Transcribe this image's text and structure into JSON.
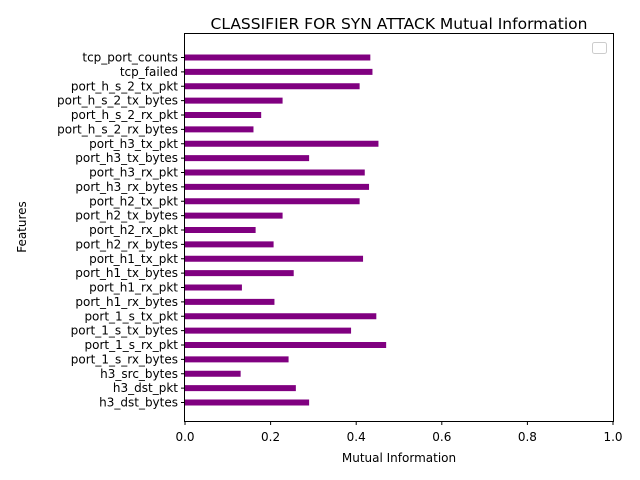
{
  "chart_data": {
    "type": "bar",
    "orientation": "horizontal",
    "title": "CLASSIFIER FOR SYN ATTACK Mutual Information",
    "xlabel": "Mutual Information",
    "ylabel": "Features",
    "xlim": [
      0.0,
      1.0
    ],
    "xticks": [
      "0.0",
      "0.2",
      "0.4",
      "0.6",
      "0.8",
      "1.0"
    ],
    "bar_color": "#800080",
    "legend": {
      "placement": "top-right",
      "entries": []
    },
    "grid": false,
    "categories": [
      "tcp_port_counts",
      "tcp_failed",
      "port_h_s_2_tx_pkt",
      "port_h_s_2_tx_bytes",
      "port_h_s_2_rx_pkt",
      "port_h_s_2_rx_bytes",
      "port_h3_tx_pkt",
      "port_h3_tx_bytes",
      "port_h3_rx_pkt",
      "port_h3_rx_bytes",
      "port_h2_tx_pkt",
      "port_h2_tx_bytes",
      "port_h2_rx_pkt",
      "port_h2_rx_bytes",
      "port_h1_tx_pkt",
      "port_h1_tx_bytes",
      "port_h1_rx_pkt",
      "port_h1_rx_bytes",
      "port_1_s_tx_pkt",
      "port_1_s_tx_bytes",
      "port_1_s_rx_pkt",
      "port_1_s_rx_bytes",
      "h3_src_bytes",
      "h3_dst_pkt",
      "h3_dst_bytes"
    ],
    "values": [
      0.433,
      0.438,
      0.408,
      0.228,
      0.178,
      0.16,
      0.452,
      0.29,
      0.42,
      0.43,
      0.408,
      0.228,
      0.165,
      0.207,
      0.416,
      0.254,
      0.133,
      0.209,
      0.447,
      0.388,
      0.47,
      0.242,
      0.13,
      0.259,
      0.29
    ]
  }
}
